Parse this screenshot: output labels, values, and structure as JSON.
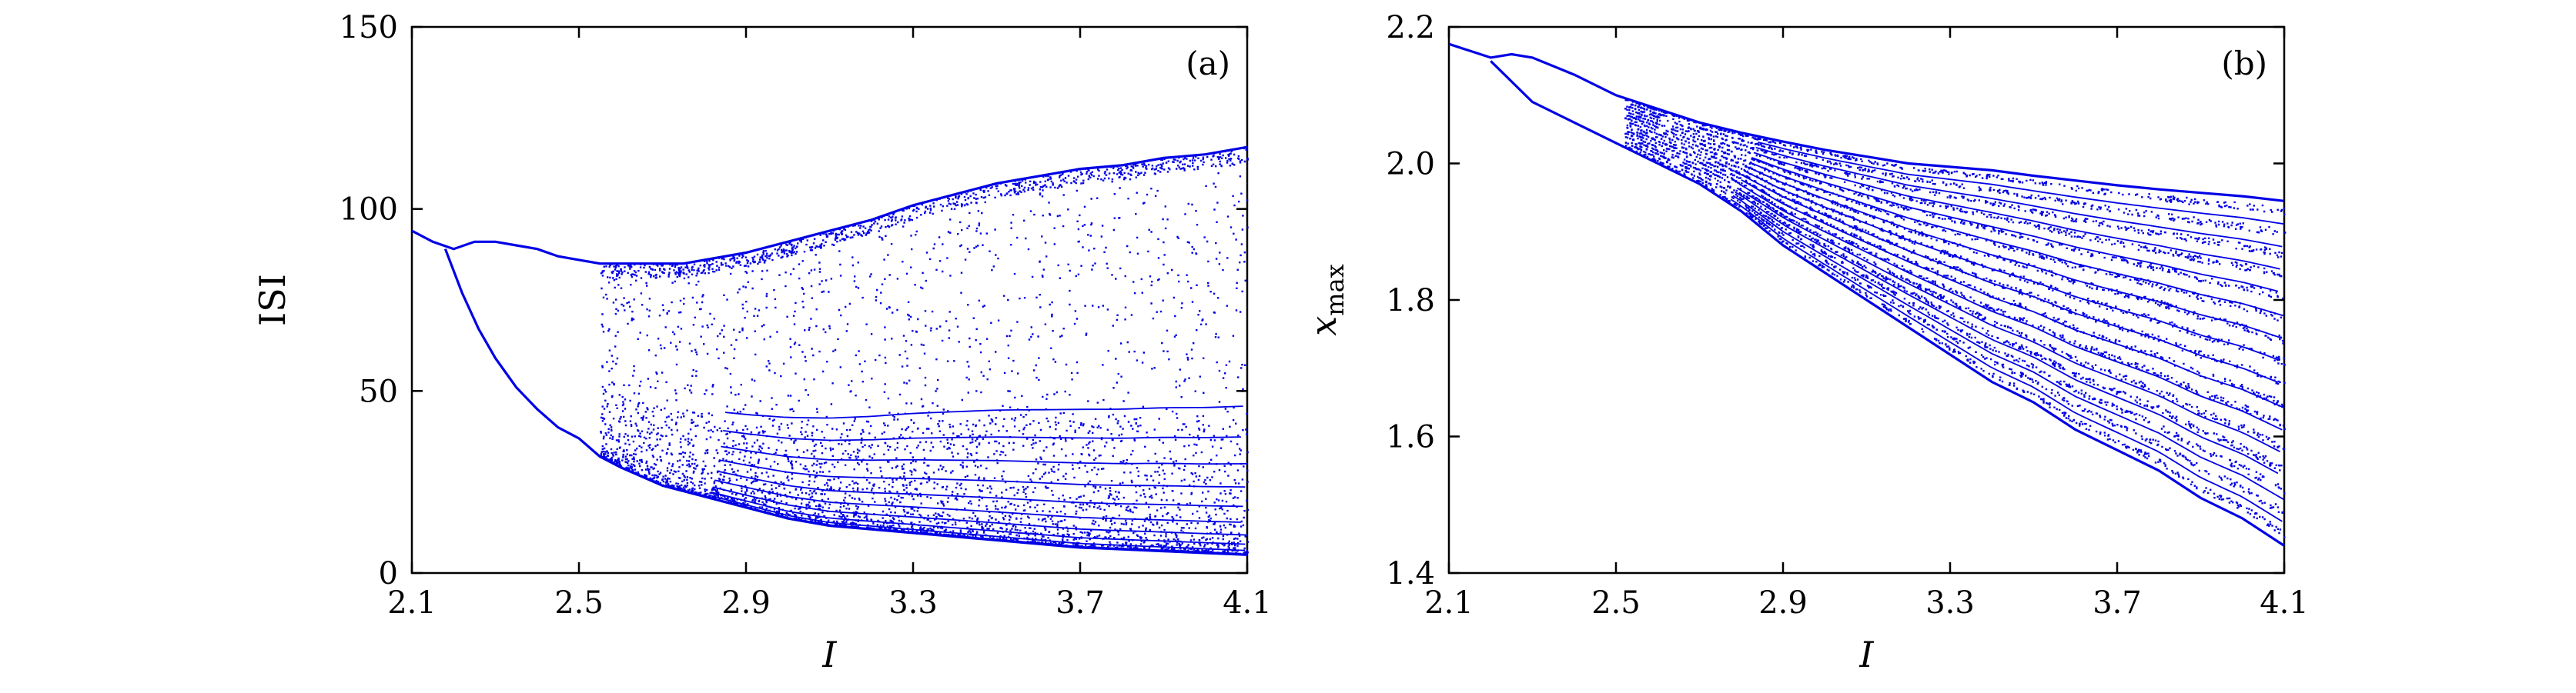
{
  "chart_data": [
    {
      "type": "scatter",
      "panel_label": "(a)",
      "xlabel": "I",
      "ylabel": "ISI",
      "xlim": [
        2.1,
        4.1
      ],
      "ylim": [
        0,
        150
      ],
      "xticks": [
        2.1,
        2.5,
        2.9,
        3.3,
        3.7,
        4.1
      ],
      "yticks": [
        0,
        50,
        100,
        150
      ],
      "xtick_labels": [
        "2.1",
        "2.5",
        "2.9",
        "3.3",
        "3.7",
        "4.1"
      ],
      "ytick_labels": [
        "0",
        "50",
        "100",
        "150"
      ],
      "grid": false,
      "color": "#0000e6",
      "series": [
        {
          "x": [
            2.1,
            2.15,
            2.2,
            2.25,
            2.3,
            2.35,
            2.4,
            2.45,
            2.5,
            2.55,
            2.6,
            2.65,
            2.7,
            2.75,
            2.8,
            2.9,
            3.0,
            3.1,
            3.2,
            3.3,
            3.4,
            3.5,
            3.6,
            3.7,
            3.8,
            3.9,
            4.0,
            4.1
          ],
          "values": [
            94,
            91,
            89,
            91,
            91,
            90,
            89,
            87,
            86,
            85,
            85,
            85,
            85,
            85,
            86,
            88,
            91,
            94,
            97,
            101,
            104,
            107,
            109,
            111,
            112,
            114,
            115,
            117
          ]
        },
        {
          "x": [
            2.18,
            2.22,
            2.26,
            2.3,
            2.35,
            2.4,
            2.45,
            2.5,
            2.55,
            2.6,
            2.7,
            2.8,
            2.9,
            3.0,
            3.1,
            3.2,
            3.3,
            3.4,
            3.5,
            3.6,
            3.7,
            3.8,
            3.9,
            4.0,
            4.1
          ],
          "values": [
            89,
            77,
            67,
            59,
            51,
            45,
            40,
            37,
            32,
            29,
            24,
            21,
            18,
            15,
            13,
            12,
            11,
            10,
            9,
            8,
            7,
            6.5,
            6,
            5.5,
            5
          ]
        }
      ]
    },
    {
      "type": "scatter",
      "panel_label": "(b)",
      "xlabel": "I",
      "ylabel_main": "x",
      "ylabel_sub": "max",
      "xlim": [
        2.1,
        4.1
      ],
      "ylim": [
        1.4,
        2.2
      ],
      "xticks": [
        2.1,
        2.5,
        2.9,
        3.3,
        3.7,
        4.1
      ],
      "yticks": [
        1.4,
        1.6,
        1.8,
        2.0,
        2.2
      ],
      "xtick_labels": [
        "2.1",
        "2.5",
        "2.9",
        "3.3",
        "3.7",
        "4.1"
      ],
      "ytick_labels": [
        "1.4",
        "1.6",
        "1.8",
        "2.0",
        "2.2"
      ],
      "grid": false,
      "color": "#0000e6",
      "series": [
        {
          "x": [
            2.1,
            2.2,
            2.25,
            2.3,
            2.4,
            2.5,
            2.6,
            2.7,
            2.8,
            2.9,
            3.0,
            3.1,
            3.2,
            3.3,
            3.4,
            3.5,
            3.6,
            3.7,
            3.8,
            3.9,
            4.0,
            4.1
          ],
          "values": [
            2.175,
            2.155,
            2.16,
            2.155,
            2.13,
            2.1,
            2.08,
            2.06,
            2.045,
            2.032,
            2.02,
            2.01,
            2.0,
            1.995,
            1.99,
            1.982,
            1.975,
            1.968,
            1.962,
            1.957,
            1.952,
            1.945
          ]
        },
        {
          "x": [
            2.2,
            2.3,
            2.4,
            2.5,
            2.6,
            2.7,
            2.8,
            2.9,
            3.0,
            3.1,
            3.2,
            3.3,
            3.4,
            3.5,
            3.6,
            3.7,
            3.8,
            3.9,
            4.0,
            4.1
          ],
          "values": [
            2.15,
            2.09,
            2.06,
            2.03,
            2.0,
            1.97,
            1.93,
            1.88,
            1.84,
            1.8,
            1.76,
            1.72,
            1.68,
            1.65,
            1.61,
            1.58,
            1.55,
            1.51,
            1.48,
            1.44
          ]
        }
      ]
    }
  ]
}
